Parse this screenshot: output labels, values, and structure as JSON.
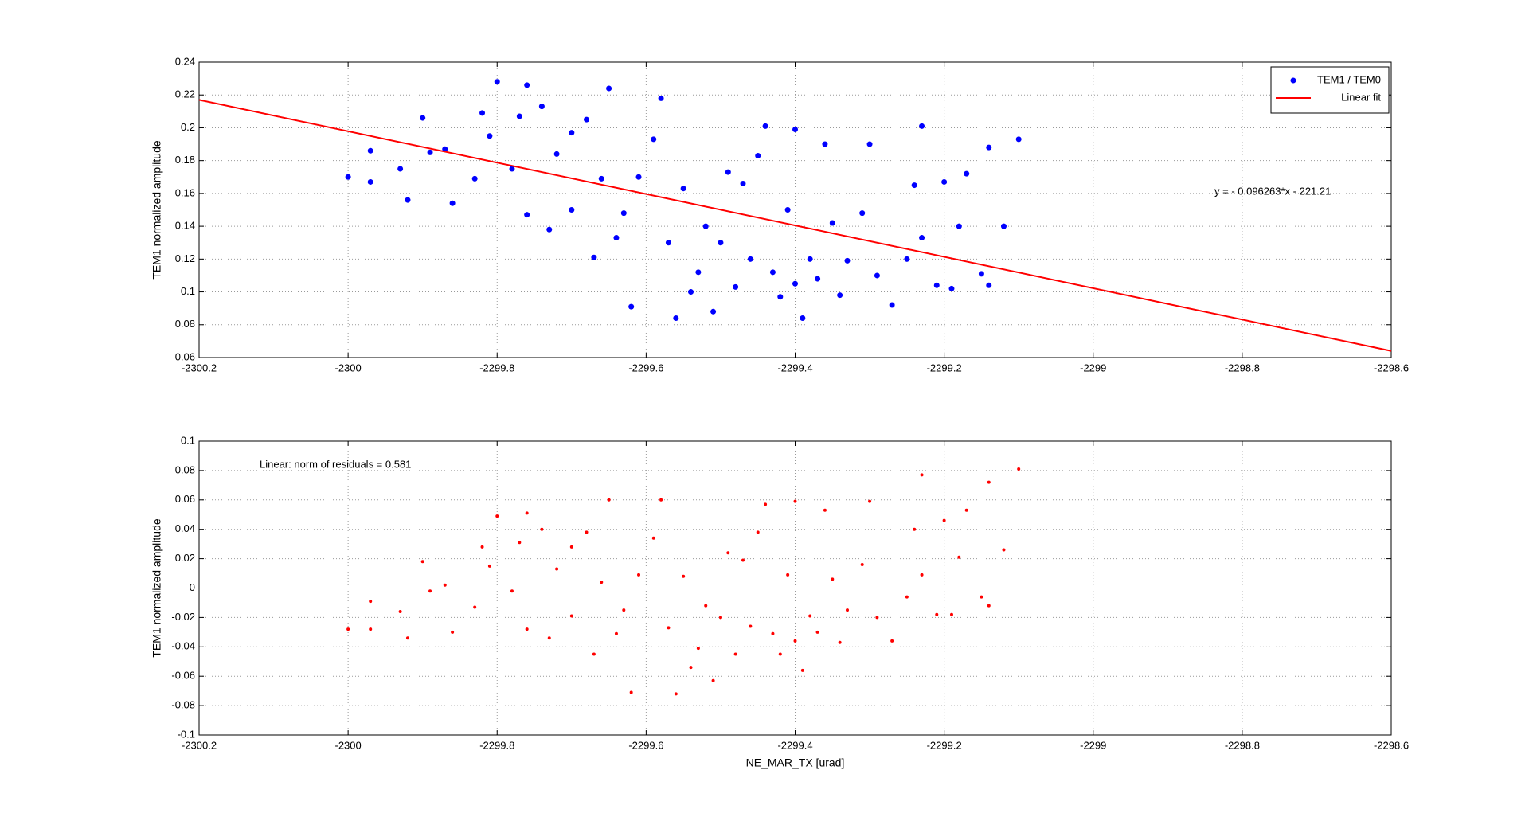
{
  "chart_data": [
    {
      "type": "scatter",
      "ylabel": "TEM1 normalized amplitude",
      "xlim": [
        -2300.2,
        -2298.6
      ],
      "xticks": [
        -2300.2,
        -2300,
        -2299.8,
        -2299.6,
        -2299.4,
        -2299.2,
        -2299,
        -2298.8,
        -2298.6
      ],
      "ylim": [
        0.06,
        0.24
      ],
      "yticks": [
        0.06,
        0.08,
        0.1,
        0.12,
        0.14,
        0.16,
        0.18,
        0.2,
        0.22,
        0.24
      ],
      "grid": true,
      "legend": "upper right",
      "annotation": "y = - 0.096263*x - 221.21",
      "series": [
        {
          "name": "TEM1 / TEM0",
          "color": "#0000ff",
          "style": "marker",
          "x": [
            -2300.0,
            -2299.97,
            -2299.97,
            -2299.93,
            -2299.92,
            -2299.9,
            -2299.89,
            -2299.87,
            -2299.86,
            -2299.83,
            -2299.82,
            -2299.81,
            -2299.8,
            -2299.78,
            -2299.77,
            -2299.76,
            -2299.76,
            -2299.74,
            -2299.73,
            -2299.72,
            -2299.7,
            -2299.7,
            -2299.68,
            -2299.67,
            -2299.66,
            -2299.65,
            -2299.64,
            -2299.63,
            -2299.62,
            -2299.61,
            -2299.59,
            -2299.58,
            -2299.57,
            -2299.56,
            -2299.55,
            -2299.54,
            -2299.53,
            -2299.52,
            -2299.51,
            -2299.5,
            -2299.49,
            -2299.48,
            -2299.47,
            -2299.46,
            -2299.45,
            -2299.44,
            -2299.43,
            -2299.42,
            -2299.41,
            -2299.4,
            -2299.4,
            -2299.39,
            -2299.38,
            -2299.37,
            -2299.36,
            -2299.35,
            -2299.34,
            -2299.33,
            -2299.31,
            -2299.3,
            -2299.29,
            -2299.27,
            -2299.25,
            -2299.24,
            -2299.23,
            -2299.23,
            -2299.21,
            -2299.2,
            -2299.19,
            -2299.18,
            -2299.17,
            -2299.15,
            -2299.14,
            -2299.14,
            -2299.12,
            -2299.1
          ],
          "values": [
            0.17,
            0.186,
            0.167,
            0.175,
            0.156,
            0.206,
            0.185,
            0.187,
            0.154,
            0.169,
            0.209,
            0.195,
            0.228,
            0.175,
            0.207,
            0.226,
            0.147,
            0.213,
            0.138,
            0.184,
            0.197,
            0.15,
            0.205,
            0.121,
            0.169,
            0.224,
            0.133,
            0.148,
            0.091,
            0.17,
            0.193,
            0.218,
            0.13,
            0.084,
            0.163,
            0.1,
            0.112,
            0.14,
            0.088,
            0.13,
            0.173,
            0.103,
            0.166,
            0.12,
            0.183,
            0.201,
            0.112,
            0.097,
            0.15,
            0.105,
            0.199,
            0.084,
            0.12,
            0.108,
            0.19,
            0.142,
            0.098,
            0.119,
            0.148,
            0.19,
            0.11,
            0.092,
            0.12,
            0.165,
            0.133,
            0.201,
            0.104,
            0.167,
            0.102,
            0.14,
            0.172,
            0.111,
            0.188,
            0.104,
            0.14,
            0.193
          ]
        },
        {
          "name": "Linear fit",
          "color": "#ff0000",
          "style": "line",
          "x": [
            -2300.2,
            -2298.6
          ],
          "values": [
            0.217,
            0.064
          ]
        }
      ]
    },
    {
      "type": "scatter",
      "xlabel": "NE_MAR_TX [urad]",
      "ylabel": "TEM1 normalized amplitude",
      "xlim": [
        -2300.2,
        -2298.6
      ],
      "xticks": [
        -2300.2,
        -2300,
        -2299.8,
        -2299.6,
        -2299.4,
        -2299.2,
        -2299,
        -2298.8,
        -2298.6
      ],
      "ylim": [
        -0.1,
        0.1
      ],
      "yticks": [
        -0.1,
        -0.08,
        -0.06,
        -0.04,
        -0.02,
        0,
        0.02,
        0.04,
        0.06,
        0.08,
        0.1
      ],
      "grid": true,
      "annotation": "Linear: norm of residuals = 0.581",
      "series": [
        {
          "color": "#ff0000",
          "style": "marker",
          "x": [
            -2300.0,
            -2299.97,
            -2299.97,
            -2299.93,
            -2299.92,
            -2299.9,
            -2299.89,
            -2299.87,
            -2299.86,
            -2299.83,
            -2299.82,
            -2299.81,
            -2299.8,
            -2299.78,
            -2299.77,
            -2299.76,
            -2299.76,
            -2299.74,
            -2299.73,
            -2299.72,
            -2299.7,
            -2299.7,
            -2299.68,
            -2299.67,
            -2299.66,
            -2299.65,
            -2299.64,
            -2299.63,
            -2299.62,
            -2299.61,
            -2299.59,
            -2299.58,
            -2299.57,
            -2299.56,
            -2299.55,
            -2299.54,
            -2299.53,
            -2299.52,
            -2299.51,
            -2299.5,
            -2299.49,
            -2299.48,
            -2299.47,
            -2299.46,
            -2299.45,
            -2299.44,
            -2299.43,
            -2299.42,
            -2299.41,
            -2299.4,
            -2299.4,
            -2299.39,
            -2299.38,
            -2299.37,
            -2299.36,
            -2299.35,
            -2299.34,
            -2299.33,
            -2299.31,
            -2299.3,
            -2299.29,
            -2299.27,
            -2299.25,
            -2299.24,
            -2299.23,
            -2299.23,
            -2299.21,
            -2299.2,
            -2299.19,
            -2299.18,
            -2299.17,
            -2299.15,
            -2299.14,
            -2299.14,
            -2299.12,
            -2299.1
          ],
          "values": [
            -0.028,
            -0.009,
            -0.028,
            -0.016,
            -0.034,
            0.018,
            -0.002,
            0.002,
            -0.03,
            -0.013,
            0.028,
            0.015,
            0.049,
            -0.002,
            0.031,
            0.051,
            -0.028,
            0.04,
            -0.034,
            0.013,
            0.028,
            -0.019,
            0.038,
            -0.045,
            0.004,
            0.06,
            -0.031,
            -0.015,
            -0.071,
            0.009,
            0.034,
            0.06,
            -0.027,
            -0.072,
            0.008,
            -0.054,
            -0.041,
            -0.012,
            -0.063,
            -0.02,
            0.024,
            -0.045,
            0.019,
            -0.026,
            0.038,
            0.057,
            -0.031,
            -0.045,
            0.009,
            -0.036,
            0.059,
            -0.056,
            -0.019,
            -0.03,
            0.053,
            0.006,
            -0.037,
            -0.015,
            0.016,
            0.059,
            -0.02,
            -0.036,
            -0.006,
            0.04,
            0.009,
            0.077,
            -0.018,
            0.046,
            -0.018,
            0.021,
            0.053,
            -0.006,
            0.072,
            -0.012,
            0.026,
            0.081
          ]
        }
      ]
    }
  ]
}
